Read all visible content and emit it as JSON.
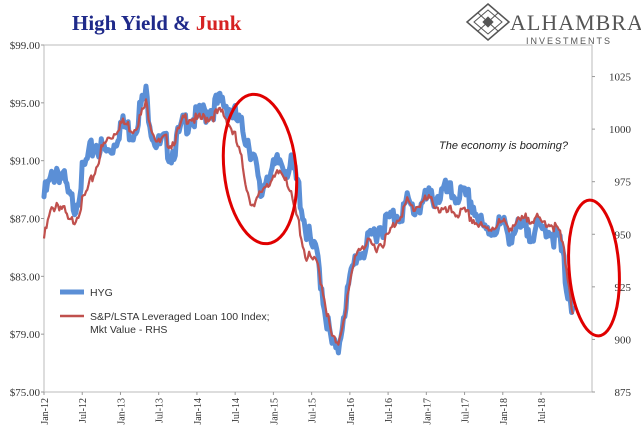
{
  "title_part1": "High Yield & ",
  "title_part2": "Junk",
  "logo": {
    "name": "ALHAMBRA",
    "sub": "INVESTMENTS",
    "icon": "alhambra-diamond-logo-icon"
  },
  "colors": {
    "hyg": "#5b8fd6",
    "loan": "#c0504d",
    "title_blue": "#1f2a8a",
    "title_red": "#d62222",
    "circle": "#e00000"
  },
  "annotation": "The economy is booming?",
  "chart_data": {
    "type": "line",
    "left_axis": {
      "min": 75,
      "max": 99,
      "ticks": [
        "$75.00",
        "$79.00",
        "$83.00",
        "$87.00",
        "$91.00",
        "$95.00",
        "$99.00"
      ],
      "tick_values": [
        75,
        79,
        83,
        87,
        91,
        95,
        99
      ]
    },
    "right_axis": {
      "min": 875,
      "max": 1040,
      "ticks": [
        "875",
        "900",
        "925",
        "950",
        "975",
        "1000",
        "1025"
      ],
      "tick_values": [
        875,
        900,
        925,
        950,
        975,
        1000,
        1025
      ]
    },
    "x_ticks": [
      "Jan-12",
      "Jul-12",
      "Jan-13",
      "Jul-13",
      "Jan-14",
      "Jul-14",
      "Jan-15",
      "Jul-15",
      "Jan-16",
      "Jul-16",
      "Jan-17",
      "Jul-17",
      "Jan-18",
      "Jul-18"
    ],
    "x_range_months": [
      0,
      86
    ],
    "series": [
      {
        "name": "HYG",
        "axis": "left",
        "points": [
          [
            0,
            88.5
          ],
          [
            1,
            89.5
          ],
          [
            2,
            90.5
          ],
          [
            3,
            89.8
          ],
          [
            4,
            88.2
          ],
          [
            5,
            88.0
          ],
          [
            6,
            90.0
          ],
          [
            7,
            91.2
          ],
          [
            8,
            92.2
          ],
          [
            9,
            91.8
          ],
          [
            10,
            91.5
          ],
          [
            11,
            92.2
          ],
          [
            12,
            93.5
          ],
          [
            13,
            93.2
          ],
          [
            14,
            93.0
          ],
          [
            15,
            94.5
          ],
          [
            16,
            95.5
          ],
          [
            17,
            93.0
          ],
          [
            18,
            92.0
          ],
          [
            19,
            92.2
          ],
          [
            20,
            91.5
          ],
          [
            21,
            92.5
          ],
          [
            22,
            93.5
          ],
          [
            23,
            94.0
          ],
          [
            24,
            93.8
          ],
          [
            25,
            94.2
          ],
          [
            26,
            94.6
          ],
          [
            27,
            94.8
          ],
          [
            28,
            95.0
          ],
          [
            29,
            94.8
          ],
          [
            30,
            94.0
          ],
          [
            31,
            93.2
          ],
          [
            32,
            92.5
          ],
          [
            33,
            91.0
          ],
          [
            34,
            88.5
          ],
          [
            35,
            90.2
          ],
          [
            36,
            90.2
          ],
          [
            37,
            91.0
          ],
          [
            38,
            90.6
          ],
          [
            39,
            90.5
          ],
          [
            40,
            89.0
          ],
          [
            41,
            86.5
          ],
          [
            42,
            85.0
          ],
          [
            43,
            84.2
          ],
          [
            44,
            81.0
          ],
          [
            45,
            78.5
          ],
          [
            46,
            77.5
          ],
          [
            47,
            80.5
          ],
          [
            48,
            82.5
          ],
          [
            49,
            84.5
          ],
          [
            50,
            84.8
          ],
          [
            51,
            85.2
          ],
          [
            52,
            86.2
          ],
          [
            53,
            86.5
          ],
          [
            54,
            86.8
          ],
          [
            55,
            87.2
          ],
          [
            56,
            87.5
          ],
          [
            57,
            88.0
          ],
          [
            58,
            87.6
          ],
          [
            59,
            88.0
          ],
          [
            60,
            88.2
          ],
          [
            61,
            88.5
          ],
          [
            62,
            88.6
          ],
          [
            63,
            88.8
          ],
          [
            64,
            88.6
          ],
          [
            65,
            88.7
          ],
          [
            66,
            88.3
          ],
          [
            67,
            88.2
          ],
          [
            68,
            87.2
          ],
          [
            69,
            86.0
          ],
          [
            70,
            86.3
          ],
          [
            71,
            86.5
          ],
          [
            72,
            86.4
          ],
          [
            73,
            86.0
          ],
          [
            74,
            86.2
          ],
          [
            75,
            86.1
          ],
          [
            76,
            86.3
          ],
          [
            77,
            86.2
          ],
          [
            78,
            86.0
          ],
          [
            79,
            86.5
          ],
          [
            80,
            85.8
          ],
          [
            81,
            85.3
          ],
          [
            82,
            82.5
          ],
          [
            83,
            80.8
          ]
        ]
      },
      {
        "name": "S&P/LSTA Leveraged Loan 100 Index; Mkt Value - RHS",
        "name_line1": "S&P/LSTA Leveraged Loan 100 Index;",
        "name_line2": "Mkt Value - RHS",
        "axis": "right",
        "points": [
          [
            0,
            948
          ],
          [
            1,
            960
          ],
          [
            2,
            965
          ],
          [
            3,
            962
          ],
          [
            4,
            955
          ],
          [
            5,
            958
          ],
          [
            6,
            965
          ],
          [
            7,
            972
          ],
          [
            8,
            980
          ],
          [
            9,
            990
          ],
          [
            10,
            995
          ],
          [
            11,
            998
          ],
          [
            12,
            1003
          ],
          [
            13,
            1002
          ],
          [
            14,
            1000
          ],
          [
            15,
            1005
          ],
          [
            16,
            1012
          ],
          [
            17,
            1000
          ],
          [
            18,
            993
          ],
          [
            19,
            995
          ],
          [
            20,
            993
          ],
          [
            21,
            998
          ],
          [
            22,
            1005
          ],
          [
            23,
            1006
          ],
          [
            24,
            1004
          ],
          [
            25,
            1005
          ],
          [
            26,
            1006
          ],
          [
            27,
            1007
          ],
          [
            28,
            1008
          ],
          [
            29,
            1003
          ],
          [
            30,
            996
          ],
          [
            31,
            985
          ],
          [
            32,
            970
          ],
          [
            33,
            962
          ],
          [
            34,
            970
          ],
          [
            35,
            975
          ],
          [
            36,
            975
          ],
          [
            37,
            980
          ],
          [
            38,
            978
          ],
          [
            39,
            965
          ],
          [
            40,
            955
          ],
          [
            41,
            940
          ],
          [
            42,
            938
          ],
          [
            43,
            935
          ],
          [
            44,
            920
          ],
          [
            45,
            903
          ],
          [
            46,
            896
          ],
          [
            47,
            910
          ],
          [
            48,
            925
          ],
          [
            49,
            942
          ],
          [
            50,
            945
          ],
          [
            51,
            945
          ],
          [
            52,
            944
          ],
          [
            53,
            946
          ],
          [
            54,
            949
          ],
          [
            55,
            955
          ],
          [
            56,
            960
          ],
          [
            57,
            965
          ],
          [
            58,
            962
          ],
          [
            59,
            965
          ],
          [
            60,
            966
          ],
          [
            61,
            966
          ],
          [
            62,
            962
          ],
          [
            63,
            960
          ],
          [
            64,
            961
          ],
          [
            65,
            960
          ],
          [
            66,
            960
          ],
          [
            67,
            958
          ],
          [
            68,
            955
          ],
          [
            69,
            952
          ],
          [
            70,
            953
          ],
          [
            71,
            955
          ],
          [
            72,
            955
          ],
          [
            73,
            954
          ],
          [
            74,
            955
          ],
          [
            75,
            956
          ],
          [
            76,
            958
          ],
          [
            77,
            958
          ],
          [
            78,
            955
          ],
          [
            79,
            956
          ],
          [
            80,
            954
          ],
          [
            81,
            950
          ],
          [
            82,
            935
          ],
          [
            83,
            912
          ]
        ]
      }
    ],
    "grid": false,
    "legend_position": "bottom-left"
  }
}
